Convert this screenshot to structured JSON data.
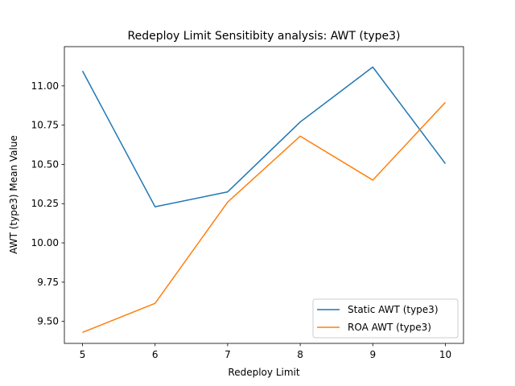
{
  "chart_data": {
    "type": "line",
    "title": "Redeploy Limit Sensitibity analysis: AWT (type3)",
    "xlabel": "Redeploy Limit",
    "ylabel": "AWT (type3) Mean Value",
    "x": [
      5,
      6,
      7,
      8,
      9,
      10
    ],
    "xlim": [
      4.75,
      10.25
    ],
    "ylim": [
      9.36,
      11.25
    ],
    "xticks": [
      "5",
      "6",
      "7",
      "8",
      "9",
      "10"
    ],
    "yticks": [
      "9.50",
      "9.75",
      "10.00",
      "10.25",
      "10.50",
      "10.75",
      "11.00"
    ],
    "grid": false,
    "legend_position": "lower-right",
    "series": [
      {
        "name": "Static AWT (type3)",
        "color": "#1f77b4",
        "values": [
          11.095,
          10.23,
          10.325,
          10.77,
          11.12,
          10.505
        ]
      },
      {
        "name": "ROA AWT (type3)",
        "color": "#ff7f0e",
        "values": [
          9.43,
          9.615,
          10.26,
          10.68,
          10.4,
          10.895
        ]
      }
    ]
  }
}
